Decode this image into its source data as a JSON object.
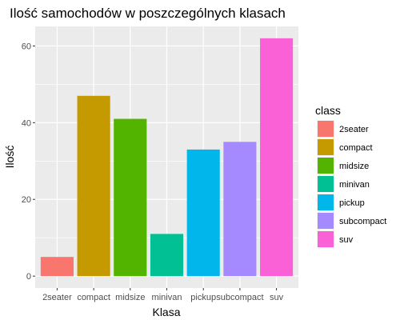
{
  "chart_data": {
    "type": "bar",
    "title": "Ilość samochodów w poszczególnych klasach",
    "xlabel": "Klasa",
    "ylabel": "Ilość",
    "categories": [
      "2seater",
      "compact",
      "midsize",
      "minivan",
      "pickup",
      "subcompact",
      "suv"
    ],
    "values": [
      5,
      47,
      41,
      11,
      33,
      35,
      62
    ],
    "colors": [
      "#F8766D",
      "#C49A00",
      "#53B400",
      "#00C094",
      "#00B6EB",
      "#A58AFF",
      "#FB61D7"
    ],
    "yticks": [
      0,
      20,
      40,
      60
    ],
    "ylim": [
      -3.1,
      65.1
    ],
    "grid": true,
    "panel_background": "#EBEBEB",
    "legend": {
      "title": "class",
      "position": "right",
      "items": [
        "2seater",
        "compact",
        "midsize",
        "minivan",
        "pickup",
        "subcompact",
        "suv"
      ]
    }
  }
}
